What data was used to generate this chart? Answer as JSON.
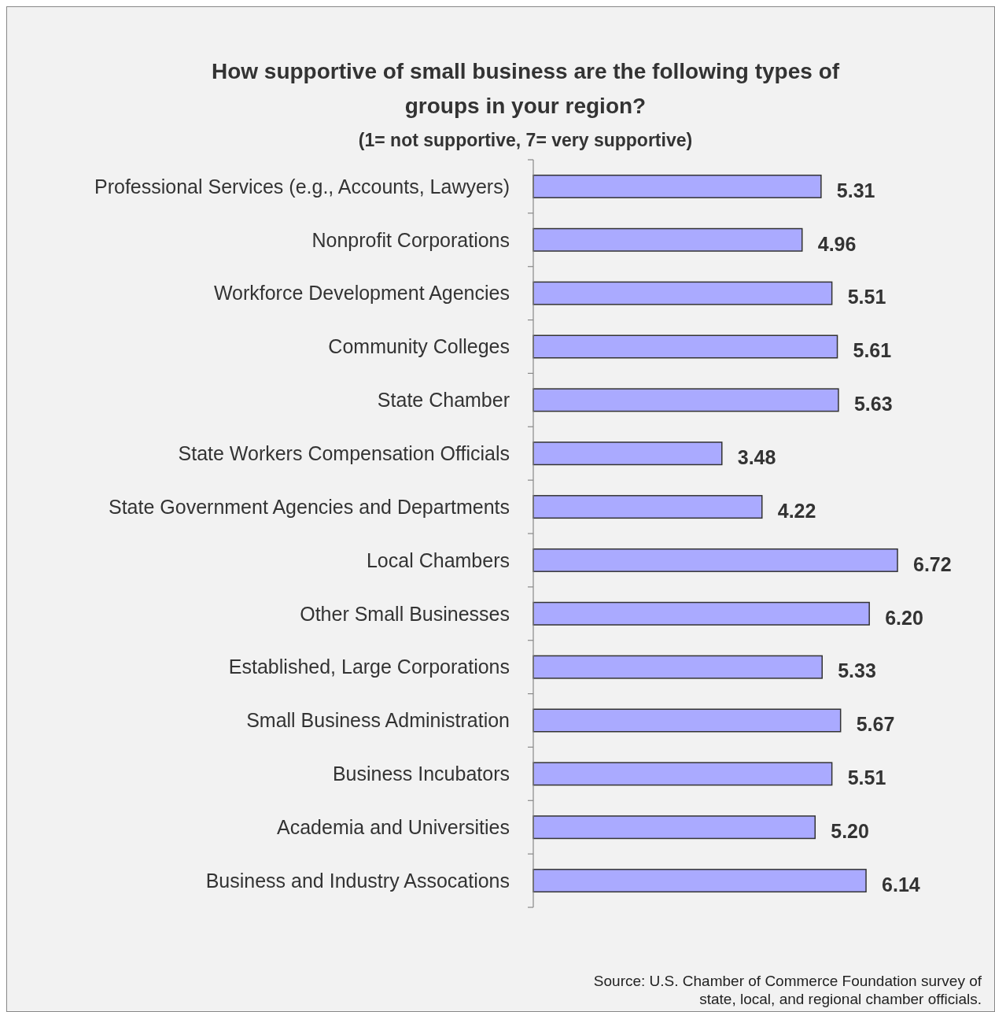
{
  "chart_data": {
    "type": "bar",
    "orientation": "horizontal",
    "title": "How supportive of small business are the following types of groups in your region?",
    "subtitle": "(1= not supportive, 7= very supportive)",
    "categories": [
      "Professional Services (e.g., Accounts, Lawyers)",
      "Nonprofit Corporations",
      "Workforce Development Agencies",
      "Community Colleges",
      "State Chamber",
      "State Workers Compensation Officials",
      "State Government Agencies and Departments",
      "Local Chambers",
      "Other Small Businesses",
      "Established, Large Corporations",
      "Small Business Administration",
      "Business Incubators",
      "Academia and Universities",
      "Business and Industry Assocations"
    ],
    "values": [
      5.31,
      4.96,
      5.51,
      5.61,
      5.63,
      3.48,
      4.22,
      6.72,
      6.2,
      5.33,
      5.67,
      5.51,
      5.2,
      6.14
    ],
    "value_labels": [
      "5.31",
      "4.96",
      "5.51",
      "5.61",
      "5.63",
      "3.48",
      "4.22",
      "6.72",
      "6.20",
      "5.33",
      "5.67",
      "5.51",
      "5.20",
      "6.14"
    ],
    "color": "#aaaaff",
    "tick_labels": "y",
    "annotations": [
      "Source: U.S. Chamber of Commerce Foundation survey of state, local, and regional chamber officials."
    ]
  }
}
